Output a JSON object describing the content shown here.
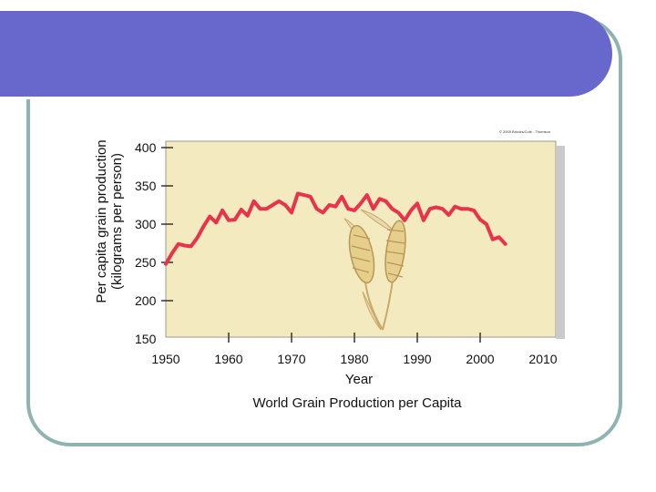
{
  "chart_data": {
    "type": "line",
    "title": "World Grain Production per Capita",
    "xlabel": "Year",
    "ylabel": [
      "Per capita grain production",
      "(kilograms per person)"
    ],
    "xlim": [
      1950,
      2010
    ],
    "ylim": [
      150,
      400
    ],
    "x_ticks": [
      1950,
      1960,
      1970,
      1980,
      1990,
      2000,
      2010
    ],
    "y_ticks": [
      400,
      350,
      300,
      250,
      200,
      150
    ],
    "copyright": "© 2005 Brooks/Cole - Thomson",
    "series": [
      {
        "name": "World grain production per capita",
        "color": "#e8334a",
        "x": [
          1950,
          1951,
          1952,
          1953,
          1954,
          1955,
          1956,
          1957,
          1958,
          1959,
          1960,
          1961,
          1962,
          1963,
          1964,
          1965,
          1966,
          1967,
          1968,
          1969,
          1970,
          1971,
          1972,
          1973,
          1974,
          1975,
          1976,
          1977,
          1978,
          1979,
          1980,
          1981,
          1982,
          1983,
          1984,
          1985,
          1986,
          1987,
          1988,
          1989,
          1990,
          1991,
          1992,
          1993,
          1994,
          1995,
          1996,
          1997,
          1998,
          1999,
          2000,
          2001,
          2002,
          2003,
          2004
        ],
        "values": [
          248,
          262,
          274,
          272,
          271,
          282,
          297,
          310,
          302,
          318,
          305,
          306,
          319,
          311,
          330,
          320,
          320,
          325,
          330,
          325,
          315,
          340,
          338,
          336,
          320,
          315,
          325,
          323,
          336,
          320,
          318,
          327,
          338,
          320,
          333,
          330,
          320,
          315,
          305,
          318,
          327,
          305,
          320,
          322,
          320,
          312,
          323,
          320,
          320,
          318,
          306,
          300,
          280,
          283,
          274
        ]
      }
    ]
  }
}
